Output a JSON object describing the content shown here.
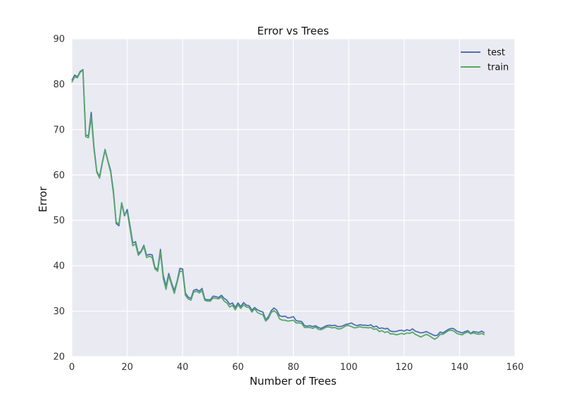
{
  "chart_data": {
    "type": "line",
    "title": "Error vs Trees",
    "xlabel": "Number of Trees",
    "ylabel": "Error",
    "xlim": [
      0,
      160
    ],
    "ylim": [
      20,
      90
    ],
    "x_ticks": [
      "0",
      "20",
      "40",
      "60",
      "80",
      "100",
      "120",
      "140",
      "160"
    ],
    "y_ticks": [
      "20",
      "30",
      "40",
      "50",
      "60",
      "70",
      "80",
      "90"
    ],
    "grid": true,
    "legend_position": "top-right",
    "series": [
      {
        "name": "test",
        "color": "#4c72b0",
        "x": [
          0,
          1,
          2,
          3,
          4,
          5,
          6,
          7,
          8,
          9,
          10,
          11,
          12,
          13,
          14,
          15,
          16,
          17,
          18,
          19,
          20,
          21,
          22,
          23,
          24,
          25,
          26,
          27,
          28,
          29,
          30,
          31,
          32,
          33,
          34,
          35,
          36,
          37,
          38,
          39,
          40,
          41,
          42,
          43,
          44,
          45,
          46,
          47,
          48,
          49,
          50,
          51,
          52,
          53,
          54,
          55,
          56,
          57,
          58,
          59,
          60,
          61,
          62,
          63,
          64,
          65,
          66,
          67,
          68,
          69,
          70,
          71,
          72,
          73,
          74,
          75,
          76,
          77,
          78,
          79,
          80,
          81,
          82,
          83,
          84,
          85,
          86,
          87,
          88,
          89,
          90,
          91,
          92,
          93,
          94,
          95,
          96,
          97,
          98,
          99,
          100,
          101,
          102,
          103,
          104,
          105,
          106,
          107,
          108,
          109,
          110,
          111,
          112,
          113,
          114,
          115,
          116,
          117,
          118,
          119,
          120,
          121,
          122,
          123,
          124,
          125,
          126,
          127,
          128,
          129,
          130,
          131,
          132,
          133,
          134,
          135,
          136,
          137,
          138,
          139,
          140,
          141,
          142,
          143,
          144,
          145,
          146,
          147,
          148,
          149
        ],
        "values": [
          80.8,
          82.0,
          81.6,
          82.8,
          83.2,
          68.8,
          68.6,
          73.8,
          66.0,
          60.8,
          59.6,
          62.8,
          65.6,
          63.2,
          61.0,
          56.5,
          49.3,
          48.8,
          53.7,
          51.0,
          52.4,
          48.8,
          45.0,
          45.3,
          42.7,
          43.2,
          44.5,
          42.3,
          42.5,
          42.4,
          39.6,
          39.2,
          43.6,
          37.9,
          35.5,
          38.3,
          36.2,
          34.5,
          36.6,
          39.4,
          39.3,
          34.0,
          33.1,
          32.8,
          34.6,
          34.8,
          34.4,
          35.0,
          32.7,
          32.5,
          32.5,
          33.3,
          33.2,
          33.0,
          33.5,
          32.8,
          32.4,
          31.5,
          31.8,
          30.8,
          31.8,
          31.0,
          31.9,
          31.3,
          31.2,
          30.2,
          30.8,
          30.3,
          30.0,
          29.8,
          28.1,
          28.8,
          30.1,
          30.7,
          30.2,
          29.0,
          28.8,
          28.9,
          28.5,
          28.6,
          28.8,
          27.9,
          27.8,
          27.7,
          26.8,
          26.7,
          26.8,
          26.6,
          26.8,
          26.4,
          26.2,
          26.5,
          26.8,
          26.9,
          26.8,
          26.9,
          26.6,
          26.6,
          26.8,
          27.1,
          27.2,
          27.4,
          27.0,
          26.8,
          27.0,
          26.9,
          26.9,
          26.8,
          27.0,
          26.5,
          26.7,
          26.2,
          26.3,
          26.1,
          26.2,
          25.6,
          25.5,
          25.5,
          25.7,
          25.8,
          25.6,
          25.9,
          25.7,
          26.1,
          25.6,
          25.4,
          25.2,
          25.3,
          25.5,
          25.2,
          24.9,
          24.6,
          24.7,
          25.4,
          25.2,
          25.6,
          26.0,
          26.2,
          26.1,
          25.6,
          25.4,
          25.2,
          25.5,
          25.7,
          25.1,
          25.5,
          25.4,
          25.3,
          25.6,
          25.2
        ]
      },
      {
        "name": "train",
        "color": "#55a868",
        "x": [
          0,
          1,
          2,
          3,
          4,
          5,
          6,
          7,
          8,
          9,
          10,
          11,
          12,
          13,
          14,
          15,
          16,
          17,
          18,
          19,
          20,
          21,
          22,
          23,
          24,
          25,
          26,
          27,
          28,
          29,
          30,
          31,
          32,
          33,
          34,
          35,
          36,
          37,
          38,
          39,
          40,
          41,
          42,
          43,
          44,
          45,
          46,
          47,
          48,
          49,
          50,
          51,
          52,
          53,
          54,
          55,
          56,
          57,
          58,
          59,
          60,
          61,
          62,
          63,
          64,
          65,
          66,
          67,
          68,
          69,
          70,
          71,
          72,
          73,
          74,
          75,
          76,
          77,
          78,
          79,
          80,
          81,
          82,
          83,
          84,
          85,
          86,
          87,
          88,
          89,
          90,
          91,
          92,
          93,
          94,
          95,
          96,
          97,
          98,
          99,
          100,
          101,
          102,
          103,
          104,
          105,
          106,
          107,
          108,
          109,
          110,
          111,
          112,
          113,
          114,
          115,
          116,
          117,
          118,
          119,
          120,
          121,
          122,
          123,
          124,
          125,
          126,
          127,
          128,
          129,
          130,
          131,
          132,
          133,
          134,
          135,
          136,
          137,
          138,
          139,
          140,
          141,
          142,
          143,
          144,
          145,
          146,
          147,
          148,
          149
        ],
        "values": [
          80.4,
          81.6,
          81.4,
          82.6,
          83.1,
          68.4,
          68.2,
          72.8,
          65.6,
          60.6,
          59.3,
          62.6,
          65.4,
          63.0,
          60.6,
          56.0,
          49.6,
          49.2,
          53.9,
          51.3,
          51.9,
          48.2,
          44.4,
          44.8,
          42.3,
          43.0,
          44.2,
          41.8,
          42.1,
          41.8,
          39.3,
          38.8,
          43.0,
          37.2,
          34.8,
          37.8,
          35.8,
          33.9,
          36.3,
          38.8,
          38.7,
          33.5,
          32.7,
          32.4,
          34.2,
          34.4,
          34.0,
          34.5,
          32.4,
          32.2,
          32.2,
          32.9,
          32.8,
          32.7,
          33.1,
          32.2,
          31.8,
          30.9,
          31.3,
          30.3,
          31.4,
          30.6,
          31.4,
          30.9,
          30.8,
          29.8,
          30.5,
          29.7,
          29.4,
          29.2,
          27.8,
          28.4,
          29.7,
          30.1,
          29.6,
          28.3,
          28.0,
          28.0,
          27.8,
          27.9,
          28.0,
          27.4,
          27.4,
          27.3,
          26.4,
          26.4,
          26.4,
          26.2,
          26.5,
          26.0,
          25.9,
          26.2,
          26.5,
          26.5,
          26.3,
          26.4,
          26.1,
          26.1,
          26.4,
          26.8,
          26.8,
          26.6,
          26.3,
          26.4,
          26.6,
          26.4,
          26.4,
          26.3,
          26.4,
          26.0,
          26.1,
          25.5,
          25.7,
          25.3,
          25.5,
          25.0,
          25.0,
          24.8,
          24.9,
          25.1,
          24.9,
          25.2,
          25.1,
          25.4,
          24.9,
          24.6,
          24.3,
          24.6,
          24.9,
          24.6,
          24.2,
          23.8,
          24.2,
          24.9,
          24.9,
          25.3,
          25.7,
          25.8,
          25.6,
          25.1,
          24.9,
          24.8,
          25.2,
          25.4,
          25.0,
          25.2,
          25.0,
          24.9,
          25.1,
          24.8
        ]
      }
    ]
  }
}
